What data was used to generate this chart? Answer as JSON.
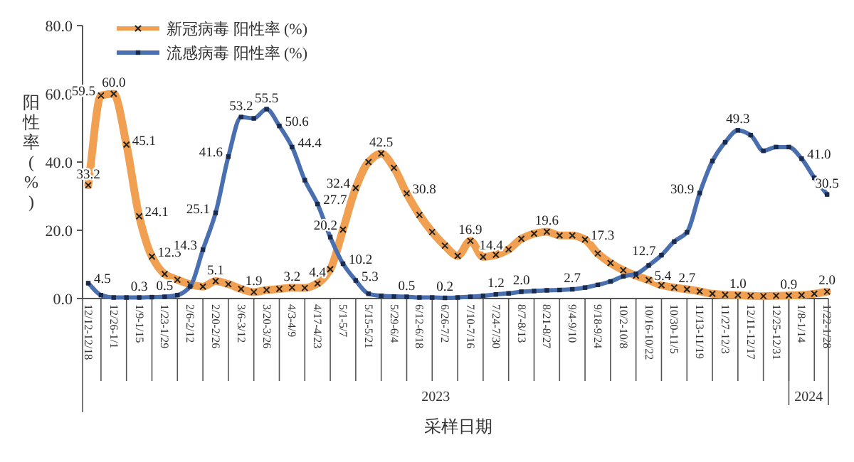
{
  "chart_data": {
    "type": "line",
    "xlabel": "采样日期",
    "ylabel": "阳性率 (%)",
    "categories": [
      "12/12-12/18",
      null,
      "12/26-1/1",
      null,
      "1/9-1/15",
      null,
      "1/23-1/29",
      null,
      "2/6-2/12",
      null,
      "2/20-2/26",
      null,
      "3/6-3/12",
      null,
      "3/20-3/26",
      null,
      "4/3-4/9",
      null,
      "4/17-4/23",
      null,
      "5/1-5/7",
      null,
      "5/15-5/21",
      null,
      "5/29-6/4",
      null,
      "6/12-6/18",
      null,
      "6/26-7/2",
      null,
      "7/10-7/16",
      null,
      "7/24-7/30",
      null,
      "8/7-8/13",
      null,
      "8/21-8/27",
      null,
      "9/4-9/10",
      null,
      "9/18-9/24",
      null,
      "10/2-10/8",
      null,
      "10/16-10/22",
      null,
      "10/30-11/5",
      null,
      "11/13-11/19",
      null,
      "11/27-12/3",
      null,
      "12/11-12/17",
      null,
      "12/25-12/31",
      null,
      "1/8-1/14",
      null,
      "1/22-1/28"
    ],
    "series": [
      {
        "name": "新冠病毒 阳性率 (%)",
        "color": "#f0a050",
        "marker": "cross",
        "values": [
          33.2,
          59.5,
          60.0,
          45.1,
          24.1,
          12.3,
          7.2,
          5.5,
          4.2,
          3.5,
          5.1,
          4.2,
          2.8,
          1.9,
          2.5,
          2.8,
          3.2,
          3.1,
          4.4,
          8.6,
          20.2,
          32.4,
          40.0,
          42.5,
          38.3,
          30.8,
          24.5,
          19.5,
          15.5,
          12.5,
          16.9,
          12.2,
          12.8,
          14.4,
          17.5,
          19.0,
          19.6,
          18.5,
          18.5,
          17.3,
          13.2,
          10.4,
          8.3,
          6.7,
          5.4,
          3.9,
          3.2,
          2.7,
          2.1,
          1.4,
          1.1,
          1.0,
          0.8,
          0.7,
          0.8,
          0.9,
          1.0,
          1.4,
          2.0
        ],
        "value_labels": [
          "33.2",
          "59.5",
          "60.0",
          "45.1",
          "24.1",
          "12.3",
          null,
          null,
          null,
          null,
          "5.1",
          null,
          null,
          "1.9",
          null,
          null,
          "3.2",
          null,
          "4.4",
          null,
          "20.2",
          "32.4",
          null,
          "42.5",
          null,
          "30.8",
          null,
          null,
          null,
          null,
          "16.9",
          null,
          null,
          "14.4",
          null,
          null,
          "19.6",
          null,
          null,
          "17.3",
          null,
          null,
          null,
          null,
          "5.4",
          null,
          null,
          "2.7",
          null,
          null,
          null,
          "1.0",
          null,
          null,
          null,
          "0.9",
          null,
          null,
          "2.0"
        ]
      },
      {
        "name": "流感病毒 阳性率 (%)",
        "color": "#4a6fb0",
        "marker": "square",
        "values": [
          4.5,
          1.0,
          0.3,
          0.3,
          0.3,
          0.4,
          0.5,
          1.0,
          3.5,
          14.3,
          25.1,
          41.6,
          53.2,
          52.8,
          55.5,
          50.6,
          44.4,
          34.7,
          27.7,
          18.0,
          10.2,
          5.3,
          1.4,
          0.8,
          0.6,
          0.5,
          0.3,
          0.3,
          0.2,
          0.3,
          0.5,
          0.8,
          1.2,
          1.5,
          2.0,
          2.2,
          2.4,
          2.5,
          2.7,
          3.2,
          4.0,
          5.0,
          6.5,
          7.2,
          9.7,
          12.7,
          16.7,
          19.4,
          30.9,
          40.3,
          45.8,
          49.3,
          47.9,
          43.3,
          44.4,
          44.4,
          41.0,
          35.4,
          30.5
        ],
        "value_labels": [
          "4.5",
          null,
          null,
          null,
          "0.3",
          null,
          "0.5",
          null,
          null,
          "14.3",
          "25.1",
          "41.6",
          "53.2",
          null,
          "55.5",
          "50.6",
          "44.4",
          null,
          "27.7",
          null,
          "10.2",
          "5.3",
          null,
          null,
          null,
          "0.5",
          null,
          null,
          "0.2",
          null,
          null,
          null,
          "1.2",
          null,
          "2.0",
          null,
          null,
          null,
          "2.7",
          null,
          null,
          null,
          null,
          null,
          null,
          "12.7",
          null,
          null,
          "30.9",
          null,
          null,
          "49.3",
          null,
          null,
          null,
          null,
          "41.0",
          null,
          "30.5"
        ]
      }
    ],
    "ylim": [
      0,
      80
    ],
    "yticks": [
      {
        "value": 0,
        "label": "0.0"
      },
      {
        "value": 20,
        "label": "20.0"
      },
      {
        "value": 40,
        "label": "40.0"
      },
      {
        "value": 60,
        "label": "60.0"
      },
      {
        "value": 80,
        "label": "80.0"
      }
    ],
    "annotations": [
      "2023",
      "2024"
    ],
    "legend": "top left"
  }
}
